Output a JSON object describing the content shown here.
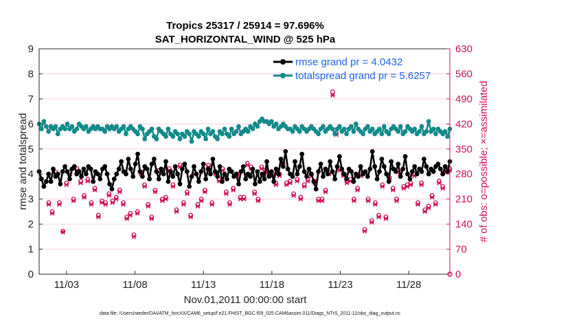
{
  "chart_data": {
    "type": "line",
    "title_line1": "Tropics 25317 / 25914 = 97.696%",
    "title_line2": "SAT_HORIZONTAL_WIND @ 525 hPa",
    "ylabel": "rmse and totalspread",
    "y2label": "# of obs: o=possible; ×=assimilated",
    "xlabel": "Nov.01,2011 00:00:00 start",
    "footer": "data file: /Users/raeder/DAI/ATM_forcXX/CAM6_setup/f.e21.FHIST_BGC.f09_025.CAM6assim.011/Diags_NTrS_2011-11/obs_diag_output.nc",
    "xlim": [
      1,
      31
    ],
    "ylim": [
      0,
      9
    ],
    "y2lim": [
      0,
      630
    ],
    "y_ticks": [
      "0",
      "1",
      "2",
      "3",
      "4",
      "5",
      "6",
      "7",
      "8",
      "9"
    ],
    "y2_ticks": [
      "0",
      "70",
      "140",
      "210",
      "280",
      "350",
      "420",
      "490",
      "560",
      "630"
    ],
    "x_ticks": [
      {
        "day": 3,
        "label": "11/03"
      },
      {
        "day": 8,
        "label": "11/08"
      },
      {
        "day": 13,
        "label": "11/13"
      },
      {
        "day": 18,
        "label": "11/18"
      },
      {
        "day": 23,
        "label": "11/23"
      },
      {
        "day": 28,
        "label": "11/28"
      }
    ],
    "series": [
      {
        "name": "rmse",
        "legend": "rmse grand pr = 4.0432",
        "color": "#000000",
        "values": [
          4.1,
          3.8,
          3.5,
          3.7,
          4.0,
          3.7,
          4.2,
          3.9,
          4.0,
          3.6,
          4.1,
          4.3,
          4.1,
          3.8,
          4.2,
          4.3,
          4.0,
          4.1,
          3.9,
          4.2,
          4.0,
          4.3,
          4.2,
          3.7,
          4.1,
          4.0,
          3.8,
          4.2,
          4.3,
          4.0,
          3.6,
          3.4,
          3.8,
          4.0,
          4.2,
          4.5,
          4.1,
          4.0,
          4.6,
          4.2,
          3.9,
          4.4,
          4.8,
          4.1,
          3.9,
          4.3,
          4.2,
          3.8,
          4.4,
          4.6,
          4.1,
          3.8,
          4.2,
          4.0,
          4.5,
          3.7,
          4.1,
          3.9,
          4.3,
          4.0,
          3.6,
          4.2,
          4.4,
          4.1,
          3.5,
          3.9,
          4.3,
          4.0,
          3.7,
          4.1,
          4.4,
          3.8,
          4.2,
          4.0,
          4.6,
          4.1,
          3.9,
          4.3,
          3.7,
          4.0,
          3.8,
          4.2,
          4.1,
          3.9,
          4.0,
          3.6,
          4.1,
          4.3,
          3.8,
          4.0,
          3.9,
          4.2,
          3.6,
          4.1,
          3.7,
          4.0,
          3.8,
          4.5,
          3.9,
          4.1,
          3.7,
          4.2,
          4.0,
          4.6,
          4.3,
          4.9,
          4.2,
          4.0,
          3.9,
          4.5,
          4.0,
          4.3,
          4.8,
          4.1,
          3.9,
          4.2,
          4.0,
          3.7,
          3.4,
          4.1,
          4.4,
          3.9,
          4.2,
          4.0,
          4.5,
          4.1,
          3.8,
          4.3,
          4.7,
          4.2,
          4.0,
          3.8,
          4.2,
          4.1,
          3.7,
          4.0,
          3.9,
          4.3,
          4.0,
          4.1,
          3.9,
          4.2,
          4.9,
          4.3,
          3.8,
          4.1,
          4.6,
          4.3,
          4.0,
          3.7,
          4.5,
          4.2,
          4.1,
          4.4,
          3.9,
          4.2,
          4.7,
          4.0,
          3.8,
          4.1,
          4.3,
          4.0,
          4.2,
          4.1,
          4.6,
          4.3,
          4.0,
          4.2,
          4.1,
          4.3,
          4.4,
          4.2,
          4.0,
          4.3,
          4.1,
          4.5
        ]
      },
      {
        "name": "totalspread",
        "legend": "totalspread grand pr = 5.6257",
        "color": "#138a8a",
        "values": [
          6.0,
          5.8,
          6.1,
          5.9,
          5.7,
          5.9,
          5.8,
          5.9,
          5.6,
          5.8,
          5.9,
          5.8,
          6.0,
          5.8,
          5.9,
          5.7,
          5.8,
          6.0,
          5.9,
          5.8,
          5.9,
          5.7,
          5.8,
          5.9,
          5.8,
          5.9,
          5.8,
          5.8,
          5.7,
          5.9,
          5.8,
          5.9,
          5.8,
          5.9,
          5.7,
          5.8,
          5.9,
          5.6,
          5.8,
          5.9,
          5.8,
          5.7,
          5.6,
          5.9,
          5.8,
          5.4,
          5.6,
          5.7,
          5.8,
          5.5,
          5.4,
          5.8,
          5.7,
          5.6,
          5.5,
          5.8,
          5.6,
          5.5,
          5.7,
          5.6,
          5.4,
          5.6,
          5.5,
          5.7,
          5.6,
          5.3,
          5.7,
          5.6,
          5.5,
          5.7,
          5.6,
          5.4,
          5.8,
          5.6,
          5.7,
          5.5,
          5.4,
          5.7,
          5.6,
          5.8,
          5.6,
          5.5,
          5.8,
          5.6,
          5.7,
          5.9,
          5.6,
          5.7,
          5.8,
          5.7,
          5.9,
          5.8,
          6.0,
          5.9,
          6.1,
          6.2,
          6.1,
          6.1,
          6.0,
          6.1,
          5.9,
          6.0,
          5.8,
          5.9,
          6.0,
          5.9,
          5.8,
          5.8,
          5.7,
          5.9,
          5.8,
          5.7,
          5.9,
          5.8,
          5.7,
          5.8,
          5.9,
          5.8,
          5.7,
          5.6,
          5.8,
          5.9,
          5.7,
          5.8,
          5.9,
          5.8,
          5.6,
          5.8,
          5.9,
          5.7,
          5.8,
          5.6,
          5.8,
          5.9,
          5.7,
          6.0,
          5.8,
          5.7,
          5.6,
          5.8,
          5.9,
          5.7,
          5.8,
          5.6,
          5.7,
          5.8,
          5.6,
          5.9,
          5.7,
          5.6,
          5.8,
          5.9,
          5.8,
          5.7,
          5.9,
          5.6,
          5.7,
          5.9,
          5.8,
          5.7,
          5.8,
          5.6,
          5.7,
          5.9,
          5.6,
          5.7,
          6.1,
          5.7,
          5.8,
          5.6,
          5.8,
          5.7,
          5.6,
          5.7,
          5.5,
          5.8
        ]
      }
    ],
    "obs_possible": [
      200,
      175,
      285,
      200,
      120,
      255,
      285,
      210,
      295,
      260,
      220,
      265,
      200,
      240,
      165,
      205,
      200,
      225,
      205,
      215,
      235,
      200,
      160,
      170,
      110,
      175,
      285,
      250,
      195,
      160,
      235,
      290,
      210,
      215,
      295,
      250,
      180,
      305,
      200,
      230,
      165,
      285,
      195,
      210,
      235,
      305,
      200,
      285,
      265,
      295,
      230,
      200,
      240,
      280,
      215,
      215,
      310,
      300,
      230,
      210,
      300,
      290,
      280,
      280,
      255,
      280,
      310,
      255,
      260,
      225,
      265,
      215,
      250,
      265,
      280,
      260,
      210,
      210,
      235,
      285,
      510,
      395,
      295,
      280,
      260,
      265,
      210,
      240,
      280,
      125,
      210,
      150,
      200,
      165,
      250,
      160,
      270,
      240,
      210,
      285,
      245,
      250,
      255,
      280,
      200,
      255,
      180,
      190,
      220,
      200,
      260,
      245,
      290,
      295
    ],
    "obs_assimilated": [
      195,
      170,
      280,
      195,
      118,
      250,
      280,
      205,
      290,
      255,
      215,
      260,
      195,
      235,
      160,
      200,
      195,
      220,
      200,
      210,
      230,
      195,
      155,
      165,
      105,
      170,
      280,
      245,
      190,
      155,
      230,
      285,
      205,
      210,
      290,
      245,
      175,
      300,
      195,
      225,
      160,
      280,
      190,
      205,
      230,
      300,
      195,
      280,
      260,
      290,
      225,
      195,
      235,
      275,
      210,
      210,
      305,
      295,
      225,
      205,
      295,
      285,
      275,
      275,
      250,
      275,
      305,
      250,
      255,
      220,
      260,
      210,
      245,
      260,
      275,
      255,
      205,
      205,
      230,
      280,
      500,
      390,
      290,
      275,
      255,
      260,
      205,
      235,
      275,
      120,
      205,
      145,
      195,
      160,
      245,
      155,
      265,
      235,
      205,
      280,
      240,
      245,
      250,
      275,
      195,
      250,
      175,
      185,
      215,
      195,
      255,
      240,
      285,
      290
    ]
  }
}
